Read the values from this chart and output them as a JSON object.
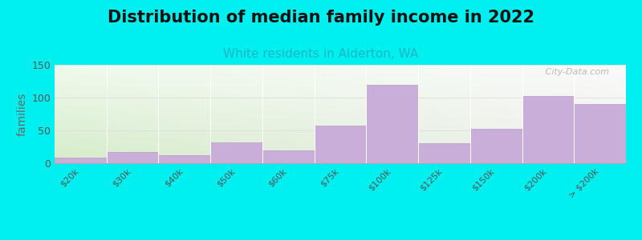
{
  "title": "Distribution of median family income in 2022",
  "subtitle": "White residents in Alderton, WA",
  "ylabel": "families",
  "background_color": "#00EFEF",
  "plot_bg_color_topleft": "#e8f5e0",
  "plot_bg_color_topright": "#f5f5f0",
  "plot_bg_color_bottomleft": "#d0ecc0",
  "plot_bg_color_bottomright": "#f0f0ee",
  "bar_color": "#c8aed8",
  "bar_edge_color": "#b89cc8",
  "categories": [
    "$20k",
    "$30k",
    "$40k",
    "$50k",
    "$60k",
    "$75k",
    "$100k",
    "$125k",
    "$150k",
    "$200k",
    "> $200k"
  ],
  "values": [
    8,
    17,
    12,
    32,
    20,
    57,
    120,
    30,
    52,
    102,
    90
  ],
  "ylim": [
    0,
    150
  ],
  "yticks": [
    0,
    50,
    100,
    150
  ],
  "title_fontsize": 15,
  "subtitle_fontsize": 11,
  "subtitle_color": "#1ab8c8",
  "ylabel_fontsize": 10,
  "watermark": " City-Data.com"
}
